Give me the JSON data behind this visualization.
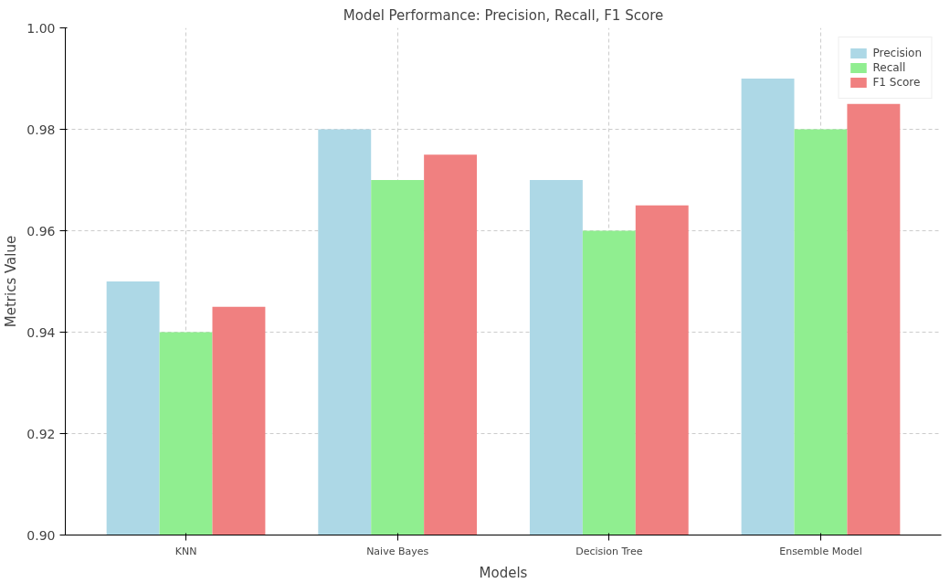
{
  "chart_data": {
    "type": "bar",
    "title": "Model Performance: Precision, Recall, F1 Score",
    "xlabel": "Models",
    "ylabel": "Metrics Value",
    "categories": [
      "KNN",
      "Naive Bayes",
      "Decision Tree",
      "Ensemble Model"
    ],
    "series": [
      {
        "name": "Precision",
        "color": "#add8e6",
        "values": [
          0.95,
          0.98,
          0.97,
          0.99
        ]
      },
      {
        "name": "Recall",
        "color": "#90ee90",
        "values": [
          0.94,
          0.97,
          0.96,
          0.98
        ]
      },
      {
        "name": "F1 Score",
        "color": "#f08080",
        "values": [
          0.945,
          0.975,
          0.965,
          0.985
        ]
      }
    ],
    "ylim": [
      0.9,
      1.0
    ],
    "yticks": [
      {
        "value": 0.9,
        "label": "0.90"
      },
      {
        "value": 0.92,
        "label": "0.92"
      },
      {
        "value": 0.94,
        "label": "0.94"
      },
      {
        "value": 0.96,
        "label": "0.96"
      },
      {
        "value": 0.98,
        "label": "0.98"
      },
      {
        "value": 1.0,
        "label": "1.00"
      }
    ],
    "grid": true,
    "legend": "top right"
  }
}
